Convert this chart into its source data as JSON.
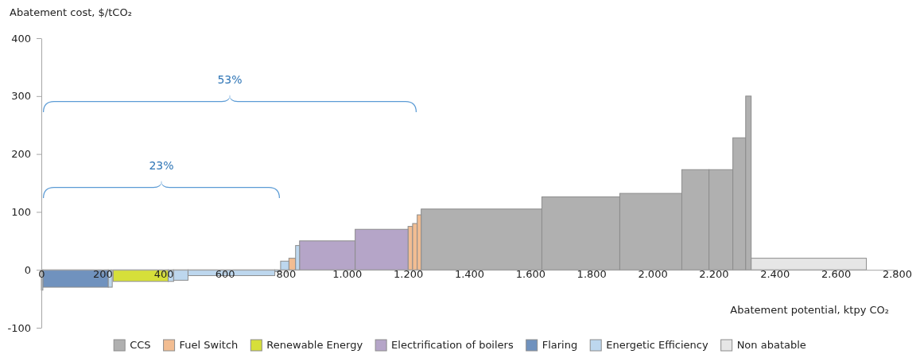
{
  "chart_data": {
    "type": "histogram",
    "ylabel": "Abatement cost, $/tCO₂",
    "xlabel": "Abatement potential, ktpy CO₂",
    "xlim": [
      0,
      2800
    ],
    "xticks": [
      0,
      200,
      400,
      600,
      800,
      {
        "value": 1000,
        "label": "1.000"
      },
      {
        "value": 1200,
        "label": "1.200"
      },
      {
        "value": 1400,
        "label": "1.400"
      },
      {
        "value": 1600,
        "label": "1.600"
      },
      {
        "value": 1800,
        "label": "1.800"
      },
      {
        "value": 2000,
        "label": "2.000"
      },
      {
        "value": 2200,
        "label": "2.200"
      },
      {
        "value": 2400,
        "label": "2.400"
      },
      {
        "value": 2600,
        "label": "2.600"
      },
      {
        "value": 2800,
        "label": "2.800"
      }
    ],
    "ylim": [
      -100,
      400
    ],
    "yticks": [
      -100,
      0,
      100,
      200,
      300,
      400
    ],
    "legend": "bottom",
    "bins": [
      0,
      5,
      219,
      232,
      235,
      415,
      433,
      480,
      764,
      783,
      810,
      832,
      845,
      1027,
      1200,
      1215,
      1230,
      1243,
      1638,
      1893,
      2096,
      2185,
      2263,
      2305,
      2323,
      2700
    ],
    "series": [
      {
        "name": "CCS",
        "color": "#b0b0b0",
        "values": [
          null,
          null,
          null,
          null,
          null,
          null,
          null,
          null,
          null,
          null,
          null,
          null,
          null,
          null,
          null,
          null,
          null,
          105,
          126,
          132,
          173,
          173,
          228,
          300,
          null
        ]
      },
      {
        "name": "Fuel Switch",
        "color": "#f2bd92",
        "values": [
          null,
          null,
          null,
          null,
          null,
          null,
          null,
          null,
          null,
          null,
          20,
          null,
          null,
          null,
          75,
          80,
          95,
          null,
          null,
          null,
          null,
          null,
          null,
          null,
          null
        ]
      },
      {
        "name": "Renewable Energy",
        "color": "#d6df3a",
        "values": [
          null,
          null,
          null,
          null,
          -20,
          null,
          null,
          null,
          null,
          null,
          null,
          null,
          null,
          null,
          null,
          null,
          null,
          null,
          null,
          null,
          null,
          null,
          null,
          null,
          null
        ]
      },
      {
        "name": "Electrification of boilers",
        "color": "#b5a5c8",
        "values": [
          null,
          null,
          null,
          null,
          null,
          null,
          null,
          null,
          null,
          null,
          null,
          null,
          50,
          70,
          null,
          null,
          null,
          null,
          null,
          null,
          null,
          null,
          null,
          null,
          null
        ]
      },
      {
        "name": "Flaring",
        "color": "#7092be",
        "values": [
          null,
          -30,
          null,
          null,
          null,
          null,
          null,
          null,
          null,
          null,
          null,
          null,
          null,
          null,
          null,
          null,
          null,
          null,
          null,
          null,
          null,
          null,
          null,
          null,
          null
        ]
      },
      {
        "name": "Energetic Efficiency",
        "color": "#bdd7ee",
        "values": [
          -35,
          null,
          -30,
          null,
          null,
          -20,
          -18,
          -10,
          -3,
          15,
          null,
          42,
          null,
          null,
          null,
          null,
          null,
          null,
          null,
          null,
          null,
          null,
          null,
          null,
          null
        ]
      },
      {
        "name": "Non abatable",
        "color": "#e6e6e6",
        "values": [
          null,
          null,
          null,
          null,
          null,
          null,
          null,
          null,
          null,
          null,
          null,
          null,
          null,
          null,
          null,
          null,
          null,
          null,
          null,
          null,
          null,
          null,
          null,
          null,
          20
        ]
      }
    ],
    "annotations": [
      "53%",
      "23%"
    ]
  }
}
